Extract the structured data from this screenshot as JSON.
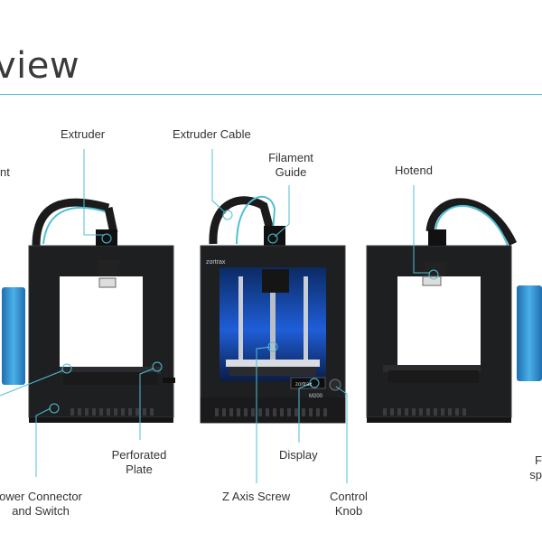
{
  "page": {
    "title": "view"
  },
  "labels": {
    "extruder": "Extruder",
    "extruder_cable": "Extruder Cable",
    "filament_guide_1": "Filament",
    "filament_guide_2": "Guide",
    "hotend": "Hotend",
    "left_cut": "nt",
    "perforated_1": "Perforated",
    "perforated_2": "Plate",
    "display": "Display",
    "power_1": "ower Connector",
    "power_2": "and Switch",
    "zscrew": "Z Axis Screw",
    "knob_1": "Control",
    "knob_2": "Knob",
    "right_cut_1": "F",
    "right_cut_2": "sp"
  },
  "printer": {
    "brand": "zortrax",
    "model": "M200"
  },
  "colors": {
    "accent": "#4fbfd6",
    "frame": "#1e1f21",
    "spool": "#2f8fd0"
  }
}
